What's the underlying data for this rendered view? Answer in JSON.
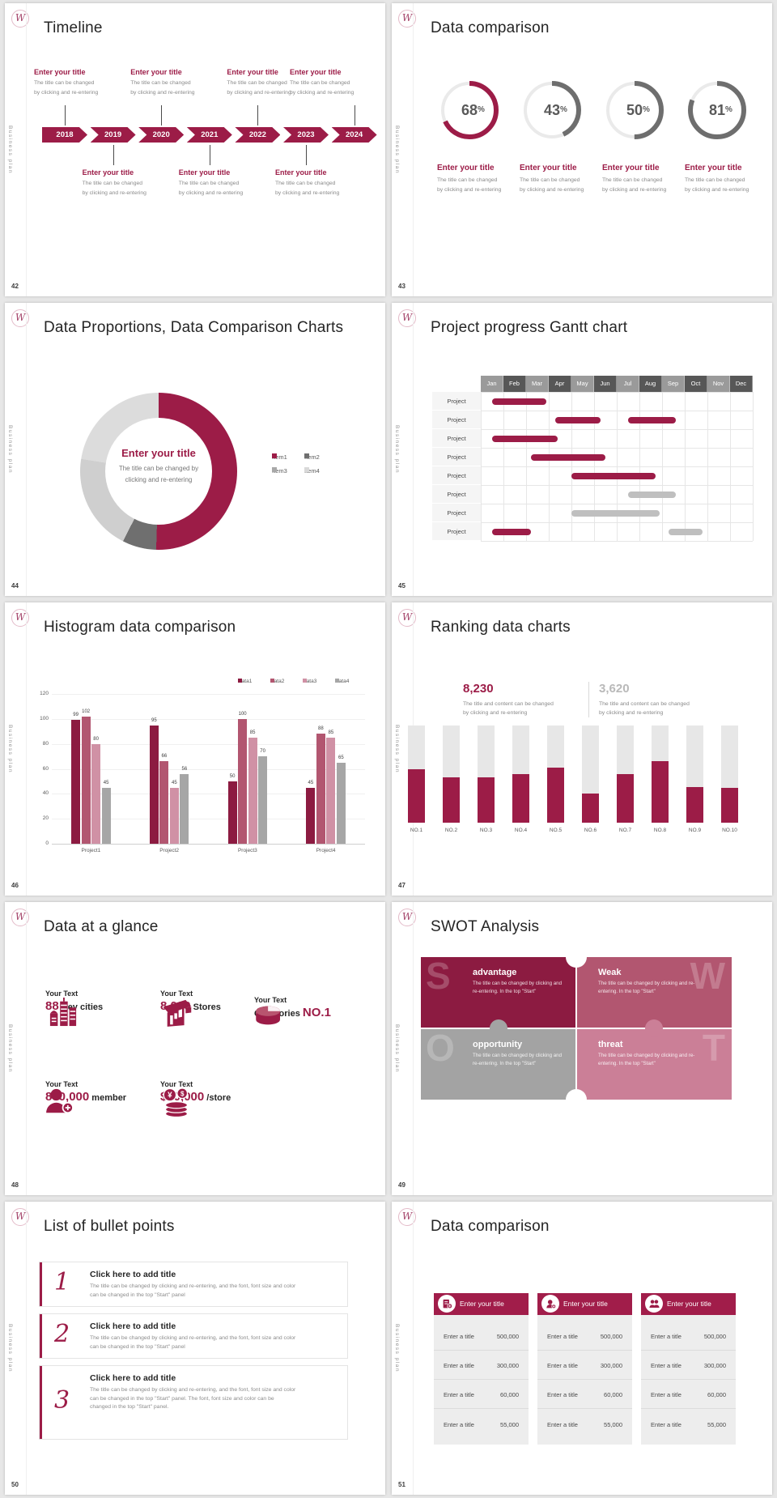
{
  "colors": {
    "primary": "#9c1c47",
    "dark_maroon": "#8c1b41",
    "rose": "#b25670",
    "pink": "#d091a5",
    "gray": "#a6a6a6",
    "dark_gray": "#6e6e6e",
    "track_gray": "#e7e7e7"
  },
  "common": {
    "logo": "W",
    "sidebar": "Business plan",
    "callout_title": "Enter your title",
    "desc1": "The title can be changed",
    "desc2": "by clicking and re-entering"
  },
  "slides": {
    "s42": {
      "page": "42",
      "title": "Timeline",
      "years": [
        "2018",
        "2019",
        "2020",
        "2021",
        "2022",
        "2023",
        "2024"
      ]
    },
    "s43": {
      "page": "43",
      "title": "Data comparison"
    },
    "s44": {
      "page": "44",
      "title": "Data Proportions, Data Comparison Charts"
    },
    "s45": {
      "page": "45",
      "title": "Project progress Gantt chart"
    },
    "s46": {
      "page": "46",
      "title": "Histogram data comparison"
    },
    "s47": {
      "page": "47",
      "title": "Ranking data charts"
    },
    "s48": {
      "page": "48",
      "title": "Data at a glance",
      "stats": [
        {
          "prefix": "Your Text",
          "value": "88",
          "label": "Key cities",
          "icon": "city-icon",
          "value_first": true
        },
        {
          "prefix": "Your Text",
          "value": "8,000",
          "label": "Stores",
          "icon": "store-icon",
          "value_first": true
        },
        {
          "prefix": "Your Text",
          "value": "NO.1",
          "label": "Categories",
          "icon": "categories-icon",
          "value_first": false
        },
        {
          "prefix": "Your Text",
          "value": "880,000",
          "label": "member",
          "icon": "member-icon",
          "value_first": true
        },
        {
          "prefix": "Your Text",
          "value": "$80,000",
          "label": "/store",
          "icon": "coins-icon",
          "value_first": true
        }
      ]
    },
    "s49": {
      "page": "49",
      "title": "SWOT Analysis",
      "desc": "The title can be changed by clicking and re-entering. In the top \"Start\"",
      "pieces": [
        {
          "letter": "S",
          "title": "advantage",
          "color": "#8c1b41",
          "side": "left"
        },
        {
          "letter": "W",
          "title": "Weak",
          "color": "#b25670",
          "side": "right"
        },
        {
          "letter": "O",
          "title": "opportunity",
          "color": "#a3a3a3",
          "side": "left"
        },
        {
          "letter": "T",
          "title": "threat",
          "color": "#cb7f97",
          "side": "right"
        }
      ]
    },
    "s50": {
      "page": "50",
      "title": "List of bullet points",
      "items": [
        {
          "num": "1",
          "title": "Click here to add title",
          "desc": "The title can be changed by clicking and re-entering, and the font, font size and color can be changed in the top \"Start\" panel"
        },
        {
          "num": "2",
          "title": "Click here to add title",
          "desc": "The title can be changed by clicking and re-entering, and the font, font size and color can be changed in the top \"Start\" panel"
        },
        {
          "num": "3",
          "title": "Click here to add title",
          "desc": "The title can be changed by clicking and re-entering, and the font, font size and color can be changed in the top \"Start\" panel. The font, font size and color can be changed in the top \"Start\" panel."
        }
      ]
    },
    "s51": {
      "page": "51",
      "title": "Data comparison",
      "row_label": "Enter a title",
      "values": [
        "500,000",
        "300,000",
        "60,000",
        "55,000"
      ],
      "cards": [
        {
          "title": "Enter your title",
          "icon": "document-icon"
        },
        {
          "title": "Enter your title",
          "icon": "person-plus-icon"
        },
        {
          "title": "Enter your title",
          "icon": "team-icon"
        }
      ]
    }
  },
  "chart_data": [
    {
      "id": "donut-progress",
      "slide": "43",
      "type": "pie",
      "values": [
        68,
        43,
        50,
        81
      ],
      "labels": [
        "68%",
        "43%",
        "50%",
        "81%"
      ],
      "arc_colors": [
        "#9c1c47",
        "#6e6e6e",
        "#6e6e6e",
        "#6e6e6e"
      ],
      "track_color": "#eaeaea",
      "caption_title": "Enter your title",
      "caption_lines": [
        "The title can be changed",
        "by clicking and re-entering"
      ]
    },
    {
      "id": "donut-share",
      "slide": "44",
      "type": "pie",
      "legend": [
        "Item1",
        "Item2",
        "Item3",
        "Item4"
      ],
      "values": [
        50.5,
        7,
        20,
        22.5
      ],
      "slice_colors": [
        "#9c1c47",
        "#6f6f6f",
        "#cfcfcf",
        "#dcdcdc"
      ],
      "legend_colors": [
        "#9c1c47",
        "#6f6f6f",
        "#a8a8a8",
        "#d9d9d9"
      ],
      "center_title": "Enter your title",
      "center_lines": [
        "The title can be changed by",
        "clicking and re-entering"
      ]
    },
    {
      "id": "gantt",
      "slide": "45",
      "type": "table",
      "months": [
        "Jan",
        "Feb",
        "Mar",
        "Apr",
        "May",
        "Jun",
        "Jul",
        "Aug",
        "Sep",
        "Oct",
        "Nov",
        "Dec"
      ],
      "header_colors": [
        "#9a9a9a",
        "#575757"
      ],
      "row_label": "Project",
      "bar_colors": {
        "m": "#9c1c47",
        "g": "#bfbfbf"
      },
      "rows": [
        [
          [
            0.5,
            2.9,
            "m"
          ]
        ],
        [
          [
            3.3,
            5.3,
            "m"
          ],
          [
            6.5,
            8.6,
            "m"
          ]
        ],
        [
          [
            0.5,
            3.4,
            "m"
          ]
        ],
        [
          [
            2.2,
            5.5,
            "m"
          ]
        ],
        [
          [
            4.0,
            7.7,
            "m"
          ]
        ],
        [
          [
            6.5,
            8.6,
            "g"
          ]
        ],
        [
          [
            4.0,
            7.9,
            "g"
          ]
        ],
        [
          [
            0.5,
            2.2,
            "m"
          ],
          [
            8.3,
            9.8,
            "g"
          ]
        ]
      ]
    },
    {
      "id": "histogram",
      "slide": "46",
      "type": "bar",
      "categories": [
        "Project1",
        "Project2",
        "Project3",
        "Project4"
      ],
      "series": [
        {
          "name": "Data1",
          "color": "#8c1b41",
          "values": [
            99,
            95,
            50,
            45
          ]
        },
        {
          "name": "Data2",
          "color": "#b25670",
          "values": [
            102,
            66,
            100,
            88
          ]
        },
        {
          "name": "Data3",
          "color": "#d091a5",
          "values": [
            80,
            45,
            85,
            85
          ]
        },
        {
          "name": "Data4",
          "color": "#a6a6a6",
          "values": [
            45,
            56,
            70,
            65
          ]
        }
      ],
      "ylim": [
        0,
        120
      ],
      "yticks": [
        0,
        20,
        40,
        60,
        80,
        100,
        120
      ],
      "legend_position": "top-right",
      "grid": true
    },
    {
      "id": "ranking",
      "slide": "47",
      "type": "bar",
      "categories": [
        "NO.1",
        "NO.2",
        "NO.3",
        "NO.4",
        "NO.5",
        "NO.6",
        "NO.7",
        "NO.8",
        "NO.9",
        "NO.10"
      ],
      "values": [
        55,
        47,
        47,
        50,
        57,
        30,
        50,
        63,
        37,
        36
      ],
      "ylim": [
        0,
        100
      ],
      "track_color": "#e7e7e7",
      "fill_color": "#9c1c47",
      "headlines": [
        {
          "value": "8,230",
          "color": "#9c1c47"
        },
        {
          "value": "3,620",
          "color": "#b9b9b9"
        }
      ],
      "headline_desc": [
        "The title and content can be changed",
        "by clicking and re-entering"
      ]
    }
  ]
}
